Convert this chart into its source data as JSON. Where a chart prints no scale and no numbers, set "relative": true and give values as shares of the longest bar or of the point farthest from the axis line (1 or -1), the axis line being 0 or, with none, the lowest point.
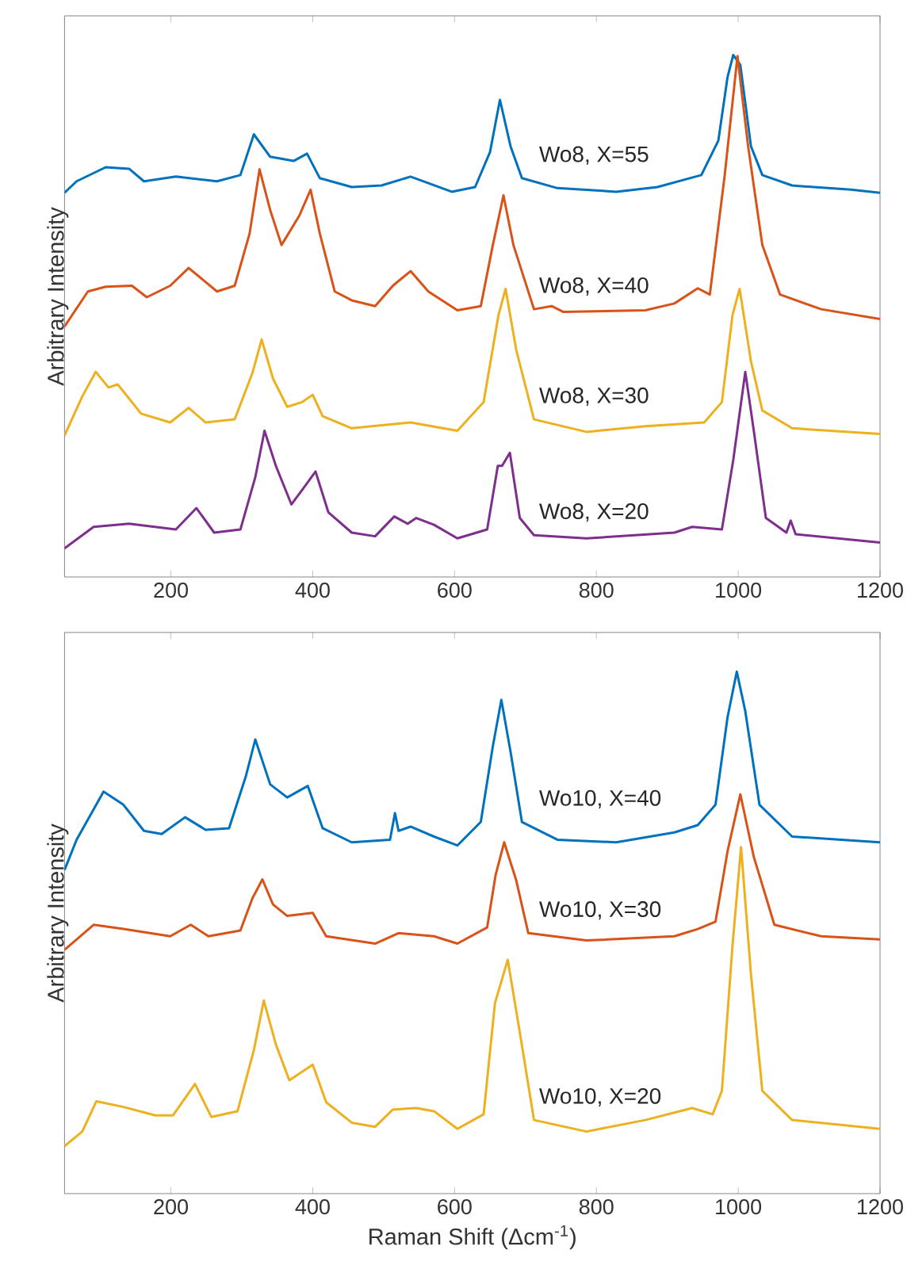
{
  "chart_data": [
    {
      "type": "line",
      "relative": true,
      "ylabel": "Arbitrary Intensity",
      "xlim": [
        50,
        1200
      ],
      "xticks": [
        200,
        400,
        600,
        800,
        1000,
        1200
      ],
      "series": [
        {
          "color": "#0072bd",
          "x": [
            50,
            67,
            108,
            141,
            162,
            207,
            265,
            298,
            317,
            340,
            373,
            392,
            410,
            455,
            497,
            538,
            596,
            629,
            650,
            664,
            679,
            695,
            745,
            828,
            886,
            948,
            972,
            985,
            993,
            1003,
            1018,
            1034,
            1076,
            1159,
            1200
          ],
          "values": [
            0.736,
            0.758,
            0.785,
            0.782,
            0.758,
            0.767,
            0.758,
            0.77,
            0.848,
            0.805,
            0.797,
            0.811,
            0.764,
            0.747,
            0.75,
            0.767,
            0.738,
            0.747,
            0.814,
            0.914,
            0.825,
            0.764,
            0.745,
            0.738,
            0.747,
            0.77,
            0.836,
            0.958,
            1.0,
            0.981,
            0.825,
            0.77,
            0.75,
            0.742,
            0.736
          ]
        },
        {
          "color": "#d95319",
          "x": [
            50,
            83,
            108,
            145,
            166,
            199,
            225,
            265,
            290,
            311,
            325,
            340,
            356,
            381,
            397,
            410,
            431,
            455,
            488,
            513,
            538,
            563,
            604,
            637,
            654,
            669,
            683,
            712,
            737,
            753,
            869,
            910,
            943,
            960,
            981,
            999,
            1014,
            1034,
            1059,
            1117,
            1200
          ],
          "values": [
            0.48,
            0.547,
            0.556,
            0.558,
            0.536,
            0.558,
            0.592,
            0.547,
            0.558,
            0.658,
            0.781,
            0.703,
            0.636,
            0.692,
            0.742,
            0.658,
            0.547,
            0.53,
            0.519,
            0.558,
            0.586,
            0.547,
            0.511,
            0.519,
            0.636,
            0.731,
            0.636,
            0.513,
            0.519,
            0.508,
            0.511,
            0.524,
            0.553,
            0.541,
            0.77,
            0.998,
            0.825,
            0.636,
            0.541,
            0.513,
            0.494
          ]
        },
        {
          "color": "#edb120",
          "x": [
            50,
            75,
            94,
            112,
            125,
            158,
            199,
            225,
            249,
            290,
            315,
            328,
            344,
            364,
            385,
            400,
            414,
            455,
            538,
            604,
            641,
            662,
            672,
            687,
            712,
            786,
            869,
            952,
            977,
            992,
            1002,
            1018,
            1034,
            1076,
            1200
          ],
          "values": [
            0.271,
            0.346,
            0.393,
            0.363,
            0.369,
            0.313,
            0.296,
            0.324,
            0.296,
            0.302,
            0.391,
            0.455,
            0.38,
            0.326,
            0.335,
            0.349,
            0.308,
            0.285,
            0.296,
            0.28,
            0.335,
            0.502,
            0.552,
            0.435,
            0.302,
            0.278,
            0.289,
            0.296,
            0.335,
            0.502,
            0.552,
            0.413,
            0.319,
            0.285,
            0.274
          ]
        },
        {
          "color": "#7e2f8e",
          "x": [
            50,
            91,
            141,
            207,
            236,
            261,
            298,
            319,
            332,
            348,
            370,
            389,
            404,
            422,
            455,
            488,
            515,
            534,
            546,
            571,
            604,
            646,
            661,
            667,
            678,
            692,
            712,
            786,
            910,
            935,
            977,
            993,
            1010,
            1022,
            1039,
            1068,
            1074,
            1081,
            1200
          ],
          "values": [
            0.055,
            0.096,
            0.102,
            0.091,
            0.132,
            0.085,
            0.091,
            0.191,
            0.28,
            0.213,
            0.139,
            0.174,
            0.202,
            0.124,
            0.085,
            0.078,
            0.116,
            0.102,
            0.113,
            0.1,
            0.074,
            0.091,
            0.213,
            0.213,
            0.238,
            0.113,
            0.08,
            0.074,
            0.085,
            0.096,
            0.091,
            0.224,
            0.393,
            0.28,
            0.113,
            0.085,
            0.108,
            0.082,
            0.066
          ]
        }
      ],
      "annotations": [
        "Wo8, X=55",
        "Wo8, X=40",
        "Wo8, X=30",
        "Wo8, X=20"
      ]
    },
    {
      "type": "line",
      "relative": true,
      "ylabel": "Arbitrary Intensity",
      "xlabel": "Raman Shift (Δcm$^{-1}$)",
      "xlim": [
        50,
        1200
      ],
      "xticks": [
        200,
        400,
        600,
        800,
        1000,
        1200
      ],
      "series": [
        {
          "color": "#0072bd",
          "x": [
            50,
            67,
            105,
            133,
            162,
            187,
            220,
            249,
            282,
            306,
            319,
            340,
            364,
            393,
            414,
            455,
            509,
            516,
            521,
            538,
            571,
            604,
            637,
            654,
            666,
            679,
            695,
            745,
            828,
            910,
            943,
            968,
            985,
            998,
            1010,
            1030,
            1076,
            1200
          ],
          "values": [
            0.62,
            0.678,
            0.77,
            0.745,
            0.695,
            0.689,
            0.721,
            0.697,
            0.7,
            0.801,
            0.87,
            0.784,
            0.759,
            0.781,
            0.7,
            0.673,
            0.678,
            0.729,
            0.695,
            0.703,
            0.684,
            0.667,
            0.712,
            0.857,
            0.946,
            0.846,
            0.712,
            0.678,
            0.673,
            0.692,
            0.706,
            0.745,
            0.913,
            1.0,
            0.924,
            0.745,
            0.684,
            0.673
          ]
        },
        {
          "color": "#d95319",
          "x": [
            50,
            91,
            133,
            199,
            228,
            253,
            298,
            315,
            329,
            344,
            364,
            400,
            419,
            488,
            521,
            571,
            604,
            646,
            658,
            670,
            687,
            704,
            786,
            910,
            943,
            968,
            985,
            1003,
            1022,
            1051,
            1117,
            1200
          ],
          "values": [
            0.467,
            0.515,
            0.507,
            0.493,
            0.515,
            0.493,
            0.504,
            0.566,
            0.602,
            0.554,
            0.532,
            0.538,
            0.493,
            0.479,
            0.499,
            0.493,
            0.479,
            0.51,
            0.611,
            0.673,
            0.6,
            0.499,
            0.485,
            0.493,
            0.507,
            0.521,
            0.656,
            0.765,
            0.645,
            0.515,
            0.493,
            0.487
          ]
        },
        {
          "color": "#edb120",
          "x": [
            50,
            75,
            95,
            133,
            178,
            203,
            234,
            257,
            294,
            317,
            331,
            348,
            367,
            400,
            419,
            455,
            488,
            513,
            546,
            571,
            604,
            641,
            657,
            675,
            692,
            712,
            786,
            869,
            935,
            964,
            977,
            992,
            1004,
            1018,
            1034,
            1076,
            1200
          ],
          "values": [
            0.091,
            0.119,
            0.177,
            0.166,
            0.15,
            0.15,
            0.21,
            0.147,
            0.158,
            0.275,
            0.37,
            0.286,
            0.217,
            0.247,
            0.175,
            0.136,
            0.128,
            0.161,
            0.164,
            0.158,
            0.124,
            0.152,
            0.365,
            0.448,
            0.309,
            0.141,
            0.119,
            0.141,
            0.164,
            0.152,
            0.197,
            0.476,
            0.664,
            0.42,
            0.197,
            0.141,
            0.124
          ]
        }
      ],
      "annotations": [
        "Wo10, X=40",
        "Wo10, X=30",
        "Wo10, X=20"
      ]
    }
  ]
}
